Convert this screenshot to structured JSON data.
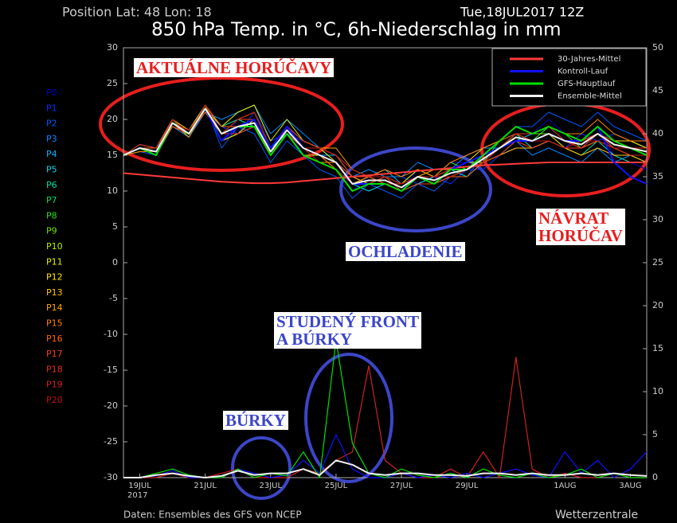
{
  "chart_data": {
    "type": "line",
    "position": "Position  Lat: 48 Lon: 18",
    "run": "Tue,18JUL2017 12Z",
    "title": "850 hPa Temp. in °C, 6h-Niederschlag in mm",
    "source": "Daten: Ensembles des GFS von NCEP",
    "brand": "Wetterzentrale",
    "year_label": "2017",
    "xlim": [
      0,
      16
    ],
    "xticks": [
      {
        "value": 0.5,
        "label": "19JUL"
      },
      {
        "value": 2.5,
        "label": "21JUL"
      },
      {
        "value": 4.5,
        "label": "23JUL"
      },
      {
        "value": 6.5,
        "label": "25JUL"
      },
      {
        "value": 8.5,
        "label": "27JUL"
      },
      {
        "value": 10.5,
        "label": "29JUL"
      },
      {
        "value": 13.5,
        "label": "1AUG"
      },
      {
        "value": 15.5,
        "label": "3AUG"
      }
    ],
    "ylim": [
      -30,
      30
    ],
    "yticks": [
      -30,
      -25,
      -20,
      -15,
      -10,
      -5,
      0,
      5,
      10,
      15,
      20,
      25,
      30
    ],
    "y2lim": [
      0,
      50
    ],
    "y2ticks": [
      0,
      5,
      10,
      15,
      20,
      25,
      30,
      35,
      40,
      45,
      50
    ],
    "x": [
      0,
      0.5,
      1,
      1.5,
      2,
      2.5,
      3,
      3.5,
      4,
      4.5,
      5,
      5.5,
      6,
      6.5,
      7,
      7.5,
      8,
      8.5,
      9,
      9.5,
      10,
      10.5,
      11,
      11.5,
      12,
      12.5,
      13,
      13.5,
      14,
      14.5,
      15,
      15.5,
      16
    ],
    "members": [
      {
        "name": "P0",
        "color": "#0000c8",
        "values": [
          15,
          16,
          15,
          20,
          18,
          22,
          17,
          20,
          20,
          15,
          19,
          15,
          14,
          13,
          10,
          12,
          11,
          10,
          13,
          12,
          14,
          14,
          16,
          17,
          19,
          18,
          20,
          18,
          17,
          19,
          15,
          14,
          13
        ]
      },
      {
        "name": "P1",
        "color": "#0030ff",
        "values": [
          15,
          16.5,
          16,
          19,
          18,
          21,
          19,
          18,
          21,
          17,
          18,
          17,
          16,
          15,
          12,
          11,
          12,
          12,
          11,
          12,
          11,
          13,
          13,
          15,
          16,
          16,
          17,
          16,
          18,
          17,
          18,
          17,
          16
        ]
      },
      {
        "name": "P2",
        "color": "#0058ff",
        "values": [
          15,
          15.5,
          15,
          20,
          18.5,
          22,
          16,
          19,
          18,
          14,
          17,
          15,
          13,
          12,
          9,
          11,
          10,
          9,
          11,
          10,
          12,
          12,
          15,
          17,
          19,
          19,
          21,
          20,
          19,
          21,
          19,
          18,
          17
        ]
      },
      {
        "name": "P3",
        "color": "#0088ff",
        "values": [
          15,
          16,
          16,
          19,
          17.5,
          21,
          20,
          21,
          22,
          18,
          20,
          18,
          16,
          14,
          12,
          13,
          12,
          12,
          14,
          13,
          13,
          15,
          16,
          16,
          17,
          15,
          16,
          15,
          14,
          16,
          14,
          15,
          14
        ]
      },
      {
        "name": "P4",
        "color": "#00b4ff",
        "values": [
          15,
          16,
          15.5,
          20,
          18,
          22,
          18,
          18,
          19,
          16,
          18,
          16,
          15,
          15,
          13,
          12,
          13,
          11,
          12,
          11,
          12,
          13,
          14,
          15,
          17,
          18,
          18,
          17,
          16,
          17,
          16,
          16,
          15
        ]
      },
      {
        "name": "P5",
        "color": "#00d8e8",
        "values": [
          15,
          16,
          15,
          19,
          18,
          21.5,
          17,
          19,
          20,
          15,
          19,
          16,
          15,
          14,
          11,
          10,
          11,
          10,
          11,
          12,
          13,
          12,
          14,
          16,
          17,
          17,
          19,
          18,
          17,
          19,
          17,
          17,
          16
        ]
      },
      {
        "name": "P6",
        "color": "#00e0a0",
        "values": [
          15,
          16,
          16,
          20,
          18,
          22,
          19,
          20,
          19,
          16,
          18,
          15,
          14,
          13,
          10,
          11,
          12,
          11,
          12,
          11,
          13,
          14,
          15,
          16,
          18,
          16,
          17,
          16,
          15,
          17,
          15,
          14,
          14
        ]
      },
      {
        "name": "P7",
        "color": "#00e060",
        "values": [
          15,
          16,
          15.5,
          19.5,
          18,
          21,
          18,
          19,
          20,
          15,
          19,
          17,
          16,
          15,
          12,
          12,
          11,
          10,
          12,
          12,
          12,
          13,
          14,
          17,
          18,
          18,
          18,
          17,
          17,
          18,
          17,
          16,
          16
        ]
      },
      {
        "name": "P8",
        "color": "#20e020",
        "values": [
          15,
          16,
          15,
          20,
          17.5,
          22,
          17,
          18,
          19,
          15,
          18,
          16,
          15,
          14,
          11,
          12,
          12,
          11,
          13,
          12,
          14,
          13,
          15,
          16,
          17,
          17,
          19,
          18,
          16,
          18,
          16,
          15,
          15
        ]
      },
      {
        "name": "P9",
        "color": "#70e000",
        "values": [
          15,
          15.5,
          15.5,
          19,
          18,
          21,
          18,
          20,
          21,
          16,
          19,
          16,
          15,
          14,
          11,
          11,
          11,
          10,
          11,
          11,
          12,
          13,
          15,
          16,
          18,
          18,
          18,
          17,
          17,
          19,
          17,
          16,
          16
        ]
      },
      {
        "name": "P10",
        "color": "#b0f000",
        "values": [
          15,
          16,
          16,
          20,
          18,
          22,
          18,
          19,
          19,
          15,
          18,
          15,
          15,
          14,
          12,
          12,
          12,
          11,
          12,
          12,
          13,
          14,
          14,
          16,
          17,
          17,
          18,
          17,
          16,
          18,
          16,
          16,
          15
        ]
      },
      {
        "name": "P11",
        "color": "#e8f000",
        "values": [
          15,
          16,
          15,
          19.5,
          18,
          21.5,
          19,
          21,
          22,
          17,
          20,
          17,
          16,
          14,
          11,
          12,
          11,
          11,
          13,
          12,
          12,
          13,
          15,
          16,
          18,
          17,
          18,
          16,
          16,
          17,
          16,
          15,
          15
        ]
      },
      {
        "name": "P12",
        "color": "#ffe000",
        "values": [
          15,
          16.5,
          16,
          20,
          18.5,
          22,
          17,
          18,
          20,
          15,
          19,
          16,
          15,
          13,
          10,
          11,
          11,
          10,
          12,
          11,
          13,
          14,
          16,
          17,
          18,
          18,
          19,
          18,
          17,
          19,
          17,
          17,
          16
        ]
      },
      {
        "name": "P13",
        "color": "#ffc400",
        "values": [
          15,
          16,
          15.5,
          19,
          18,
          21,
          18,
          20,
          21,
          16,
          19,
          17,
          16,
          15,
          12,
          11,
          12,
          11,
          12,
          12,
          12,
          13,
          14,
          15,
          16,
          16,
          17,
          16,
          15,
          16,
          15,
          15,
          14
        ]
      },
      {
        "name": "P14",
        "color": "#ffa400",
        "values": [
          15,
          16,
          15,
          20,
          18,
          22,
          18,
          19,
          20,
          15,
          18,
          16,
          16,
          16,
          13,
          12,
          12,
          11,
          12,
          13,
          13,
          14,
          15,
          16,
          18,
          17,
          18,
          17,
          17,
          18,
          16,
          16,
          15
        ]
      },
      {
        "name": "P15",
        "color": "#ff8400",
        "values": [
          15,
          15.5,
          15.5,
          19.5,
          17.5,
          21.5,
          17,
          19,
          19,
          15,
          18,
          15,
          14,
          14,
          11,
          12,
          13,
          12,
          13,
          12,
          14,
          15,
          16,
          17,
          19,
          18,
          19,
          18,
          18,
          20,
          18,
          17,
          17
        ]
      },
      {
        "name": "P16",
        "color": "#ff6400",
        "values": [
          15,
          16,
          16,
          20,
          18,
          22,
          19,
          19,
          20,
          16,
          19,
          16,
          15,
          13,
          10,
          11,
          11,
          11,
          12,
          11,
          12,
          12,
          14,
          16,
          17,
          17,
          18,
          17,
          16,
          18,
          16,
          16,
          15
        ]
      },
      {
        "name": "P17",
        "color": "#f04020",
        "values": [
          15,
          16,
          15,
          19,
          18,
          21,
          18,
          20,
          20,
          15,
          18,
          16,
          15,
          14,
          12,
          12,
          12,
          10,
          11,
          11,
          12,
          13,
          14,
          15,
          17,
          16,
          17,
          16,
          16,
          17,
          16,
          15,
          15
        ]
      },
      {
        "name": "P18",
        "color": "#e03020",
        "values": [
          15,
          16,
          15.5,
          20,
          18,
          22,
          18,
          18,
          19,
          16,
          19,
          17,
          16,
          15,
          12,
          12,
          11,
          11,
          12,
          12,
          13,
          14,
          15,
          17,
          18,
          18,
          19,
          17,
          17,
          18,
          17,
          16,
          16
        ]
      },
      {
        "name": "P19",
        "color": "#d02020",
        "values": [
          15,
          16.5,
          16,
          19.5,
          18.5,
          21.5,
          17,
          19,
          20,
          15,
          19,
          16,
          14,
          13,
          11,
          11,
          12,
          11,
          12,
          12,
          13,
          13,
          15,
          16,
          18,
          17,
          18,
          17,
          16,
          18,
          16,
          15,
          15
        ]
      },
      {
        "name": "P20",
        "color": "#c01010",
        "values": [
          15,
          16,
          15,
          20,
          18,
          22,
          18,
          20,
          21,
          16,
          19,
          16,
          16,
          15,
          13,
          12,
          12,
          11,
          12,
          12,
          12,
          13,
          14,
          16,
          17,
          17,
          17,
          16,
          17,
          17,
          16,
          16,
          15
        ]
      }
    ],
    "series": [
      {
        "name": "30-Jahres-Mittel",
        "color": "#ff3a3a",
        "values": [
          12.5,
          12.3,
          12.1,
          11.9,
          11.7,
          11.5,
          11.3,
          11.2,
          11.1,
          11.1,
          11.2,
          11.4,
          11.6,
          11.8,
          12,
          12.2,
          12.4,
          12.6,
          12.8,
          13,
          13.2,
          13.4,
          13.6,
          13.7,
          13.8,
          13.9,
          14,
          14,
          14,
          14,
          14,
          14,
          14
        ]
      },
      {
        "name": "Kontroll-Lauf",
        "color": "#1010ff",
        "values": [
          15,
          16,
          15.5,
          19.5,
          18,
          21.5,
          17,
          19,
          20,
          16,
          19,
          16,
          15,
          14,
          11,
          11,
          11,
          10,
          12,
          11,
          13,
          14,
          15,
          16,
          17,
          17,
          18,
          17,
          17,
          19,
          14,
          12,
          11
        ]
      },
      {
        "name": "GFS-Hauptlauf",
        "color": "#00e000",
        "values": [
          15,
          16,
          15,
          19.5,
          18,
          21.5,
          18,
          19,
          19,
          15,
          18,
          15,
          14,
          13,
          10,
          11,
          11,
          10,
          12,
          11,
          13,
          13,
          15,
          17,
          19,
          18,
          19,
          18,
          17,
          19,
          17,
          16,
          15
        ]
      },
      {
        "name": "Ensemble-Mittel",
        "color": "#f0f0f0",
        "values": [
          15,
          16,
          15.5,
          19.5,
          18,
          21.5,
          18,
          19,
          19.5,
          15.5,
          18.5,
          16,
          15,
          14,
          11,
          11.5,
          11.5,
          10.5,
          12,
          11.5,
          12.5,
          13,
          14.5,
          16,
          17.5,
          17,
          18,
          17,
          16.5,
          18,
          16.5,
          16,
          15.5
        ]
      }
    ],
    "precip_series": [
      {
        "color": "#d02020",
        "axis": "y2",
        "values": [
          0,
          0,
          0,
          0.5,
          0,
          0,
          0.5,
          1,
          0,
          0,
          0,
          1,
          0.5,
          2,
          3,
          13,
          2,
          0.5,
          0,
          0,
          1,
          0,
          3,
          0,
          14,
          1,
          0,
          0.5,
          0,
          0,
          0.5,
          0,
          0
        ]
      },
      {
        "color": "#1010ff",
        "axis": "y2",
        "values": [
          0,
          0,
          0.2,
          0.8,
          0,
          0,
          0,
          1,
          0.5,
          0,
          0.3,
          2,
          0.5,
          5,
          1,
          0,
          0,
          0.5,
          0,
          0.3,
          0,
          0.5,
          0,
          0.5,
          1,
          0.3,
          0,
          3,
          0.5,
          2,
          0,
          1,
          3
        ]
      },
      {
        "color": "#00e000",
        "axis": "y2",
        "values": [
          0,
          0,
          0.5,
          1,
          0.3,
          0,
          0,
          1,
          0,
          0.5,
          0.2,
          3,
          0,
          16,
          4,
          0.5,
          0,
          1,
          0.3,
          0,
          0.5,
          0,
          1,
          0.3,
          0,
          0.5,
          0,
          0.3,
          1,
          0,
          0.5,
          0,
          0
        ]
      },
      {
        "color": "#f0f0f0",
        "axis": "y2",
        "values": [
          0,
          0,
          0.3,
          0.5,
          0.2,
          0,
          0.2,
          0.8,
          0.3,
          0.5,
          0.5,
          1,
          0.3,
          2,
          1.5,
          0.5,
          0.3,
          0.5,
          0.5,
          0.3,
          0.3,
          0.2,
          0.5,
          0.5,
          0.3,
          0.5,
          0.3,
          0.3,
          0.5,
          0.3,
          0.5,
          0.3,
          0.2
        ]
      }
    ],
    "annotations": [
      {
        "lines": [
          "AKTUÁLNE HORÚČAVY"
        ]
      },
      {
        "lines": [
          "OCHLADENIE"
        ]
      },
      {
        "lines": [
          "NÁVRAT",
          "HORÚČAV"
        ]
      },
      {
        "lines": [
          "STUDENÝ FRONT",
          "A BÚRKY"
        ]
      },
      {
        "lines": [
          "BÚRKY"
        ]
      }
    ]
  }
}
